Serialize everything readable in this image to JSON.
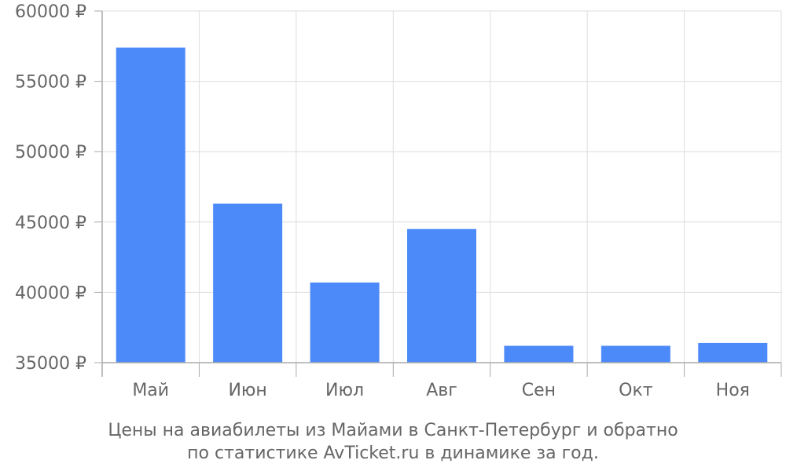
{
  "chart_data": {
    "type": "bar",
    "categories": [
      "Май",
      "Июн",
      "Июл",
      "Авг",
      "Сен",
      "Окт",
      "Ноя"
    ],
    "values": [
      57400,
      46300,
      40700,
      44500,
      36200,
      36200,
      36400
    ],
    "ylim": [
      35000,
      60000
    ],
    "yticks": [
      35000,
      40000,
      45000,
      50000,
      55000,
      60000
    ],
    "ytick_labels": [
      "35000 ₽",
      "40000 ₽",
      "45000 ₽",
      "50000 ₽",
      "55000 ₽",
      "60000 ₽"
    ],
    "grid": true,
    "bar_color": "#4d8af9",
    "grid_color": "#dddddd",
    "axis_color": "#aaaaaa",
    "text_color": "#666666",
    "caption": [
      "Цены на авиабилеты из Майами в Санкт-Петербург и обратно",
      "по статистике AvTicket.ru в динамике за год."
    ]
  }
}
